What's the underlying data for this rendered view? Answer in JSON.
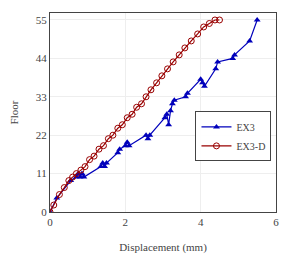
{
  "chart_data": {
    "type": "line",
    "xlabel": "Displacement (mm)",
    "ylabel": "Floor",
    "series": [
      {
        "name": "EX3",
        "color": "#0000bb",
        "marker": "triangle-up",
        "x": [
          0,
          0.18,
          0.55,
          0.7,
          0.75,
          0.8,
          0.85,
          0.9,
          1.35,
          1.4,
          1.45,
          1.5,
          1.8,
          1.85,
          2.0,
          2.05,
          2.1,
          2.55,
          2.6,
          2.65,
          3.05,
          3.1,
          3.15,
          3.2,
          3.25,
          3.3,
          3.6,
          3.65,
          4.0,
          4.05,
          4.1,
          4.4,
          4.45,
          4.85,
          4.9,
          5.3,
          5.5
        ],
        "values": [
          0,
          4,
          9,
          10,
          11,
          10,
          11,
          10,
          13,
          14,
          13,
          14,
          17,
          18,
          19,
          20,
          19,
          22,
          21,
          22,
          27,
          28,
          25,
          29,
          31,
          32,
          33,
          34,
          38,
          37,
          36,
          41,
          43,
          44,
          45,
          49,
          55
        ]
      },
      {
        "name": "EX3-D",
        "color": "#990000",
        "marker": "circle-open",
        "x": [
          0,
          0.1,
          0.25,
          0.38,
          0.5,
          0.6,
          0.7,
          0.82,
          0.93,
          1.05,
          1.17,
          1.3,
          1.42,
          1.55,
          1.67,
          1.8,
          1.92,
          2.05,
          2.18,
          2.3,
          2.43,
          2.55,
          2.68,
          2.83,
          2.97,
          3.12,
          3.27,
          3.43,
          3.58,
          3.75,
          3.92,
          4.08,
          4.23,
          4.38,
          4.5
        ],
        "values": [
          0,
          2,
          5,
          7,
          9,
          10,
          11,
          12,
          13,
          15,
          16,
          18,
          19,
          21,
          22,
          24,
          25,
          27,
          28,
          30,
          31,
          33,
          35,
          37,
          39,
          41,
          43,
          45,
          47,
          49,
          51,
          53,
          54,
          55,
          55
        ]
      }
    ],
    "xlim": [
      0,
      6
    ],
    "ylim": [
      0,
      57
    ],
    "xticks": [
      0,
      2,
      4,
      6
    ],
    "yticks": [
      0,
      11,
      22,
      33,
      44,
      55
    ],
    "grid": true,
    "legend": "right"
  }
}
